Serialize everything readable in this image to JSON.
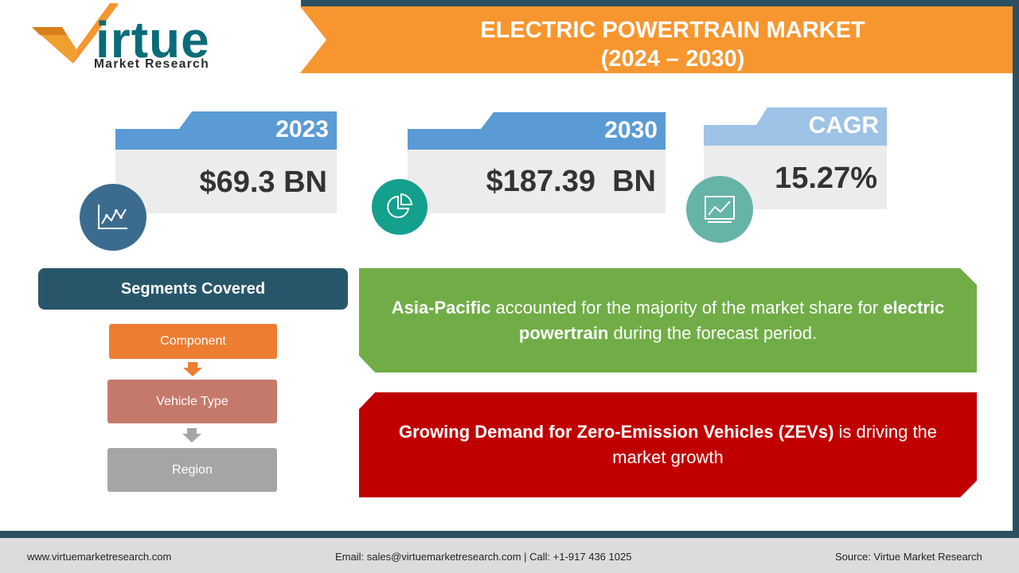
{
  "brand": {
    "logo_word": "irtue",
    "logo_sub": "Market Research"
  },
  "header": {
    "title_line1": "ELECTRIC POWERTRAIN MARKET",
    "title_line2": "(2024 – 2030)"
  },
  "stats": [
    {
      "label": "2023",
      "value": "$69.3 BN",
      "icon": "line-chart-icon"
    },
    {
      "label": "2030",
      "value": "$187.39  BN",
      "icon": "pie-chart-icon"
    },
    {
      "label": "CAGR",
      "value": "15.27%",
      "icon": "growth-chart-icon"
    }
  ],
  "segments": {
    "title": "Segments Covered",
    "items": [
      "Component",
      "Vehicle Type",
      "Region"
    ]
  },
  "insights": [
    {
      "bold1": "Asia-Pacific",
      "text1": " accounted for the majority of the market share for ",
      "bold2": "electric powertrain",
      "text2": " during the forecast period."
    },
    {
      "bold1": "Growing Demand for Zero-Emission Vehicles (ZEVs)",
      "text1": " is driving the market growth"
    }
  ],
  "footer": {
    "website": "www.virtuemarketresearch.com",
    "contact": "Email: sales@virtuemarketresearch.com | Call: +1-917 436 1025",
    "source": "Source: Virtue Market Research"
  },
  "colors": {
    "orange": "#f7962f",
    "blue": "#5b9bd5",
    "dark_teal": "#27566b",
    "green": "#70ad47",
    "red": "#c00000"
  }
}
